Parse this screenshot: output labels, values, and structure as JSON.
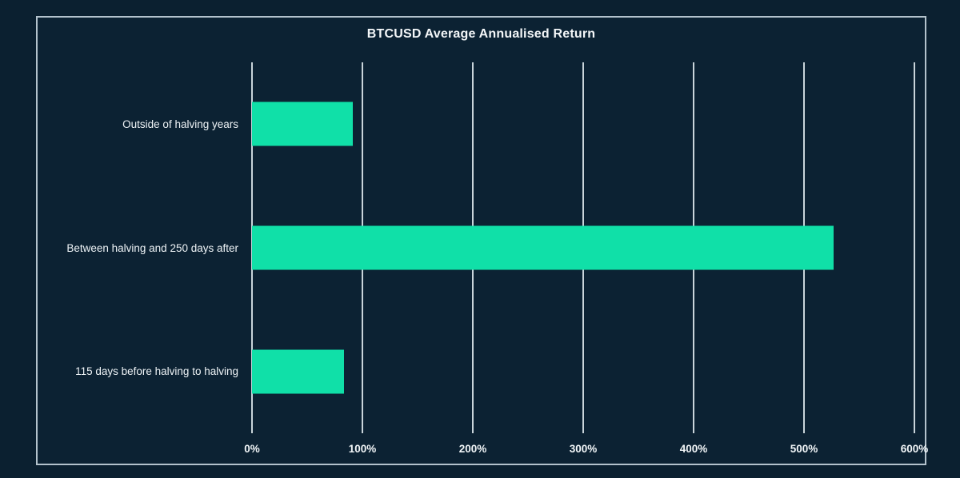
{
  "window": {
    "background_color": "#0b2030",
    "frame_border_color": "#b3c2cc"
  },
  "chart_data": {
    "type": "bar",
    "orientation": "horizontal",
    "title": "BTCUSD Average Annualised Return",
    "categories": [
      "Outside of halving years",
      "Between halving and 250 days after",
      "115 days before halving to halving"
    ],
    "values": [
      91,
      527,
      83
    ],
    "value_unit": "percent",
    "xlabel": "",
    "ylabel": "",
    "xlim": [
      0,
      600
    ],
    "xticks": [
      0,
      100,
      200,
      300,
      400,
      500,
      600
    ],
    "xtick_labels": [
      "0%",
      "100%",
      "200%",
      "300%",
      "400%",
      "500%",
      "600%"
    ],
    "grid": true,
    "legend": false,
    "bar_color": "#10e0a8",
    "gridline_color": "#c9d4da",
    "text_color": "#f2f6f8"
  }
}
